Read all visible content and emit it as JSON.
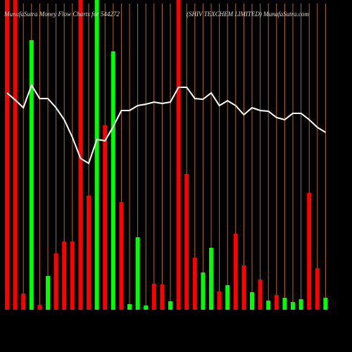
{
  "chart_data": {
    "type": "bar",
    "title": "MunafaSutra  Money Flow  Charts for 544272",
    "subtitle": "(SHIV TEXCHEM LIMITED) MunafaSutra.com",
    "up_color": "#00ff00",
    "down_color": "#ff0000",
    "line_color": "#ffffff",
    "guide_color": "#b8681a",
    "series": [
      {
        "name": "money-flow-bars",
        "directions": [
          "down",
          "down",
          "down",
          "up",
          "down",
          "up",
          "down",
          "down",
          "down",
          "down",
          "down",
          "up",
          "down",
          "up",
          "down",
          "up",
          "up",
          "up",
          "down",
          "down",
          "up",
          "down",
          "down",
          "down",
          "up",
          "up",
          "down",
          "up",
          "down",
          "down",
          "up",
          "down",
          "up",
          "down",
          "up",
          "up",
          "up",
          "down",
          "down",
          "up"
        ],
        "values": [
          440,
          440,
          23,
          383,
          7,
          48,
          80,
          97,
          97,
          440,
          162,
          440,
          262,
          367,
          153,
          8,
          103,
          6,
          37,
          36,
          12,
          440,
          193,
          74,
          53,
          88,
          26,
          35,
          108,
          63,
          25,
          43,
          13,
          21,
          17,
          11,
          15,
          166,
          59,
          17
        ]
      },
      {
        "name": "money-flow-line",
        "values": [
          308,
          298,
          287,
          319,
          300,
          300,
          287,
          270,
          245,
          215,
          208,
          242,
          240,
          260,
          283,
          283,
          290,
          292,
          295,
          293,
          295,
          316,
          316,
          300,
          299,
          308,
          290,
          297,
          290,
          277,
          287,
          283,
          282,
          273,
          270,
          279,
          279,
          270,
          259,
          252
        ]
      }
    ]
  }
}
